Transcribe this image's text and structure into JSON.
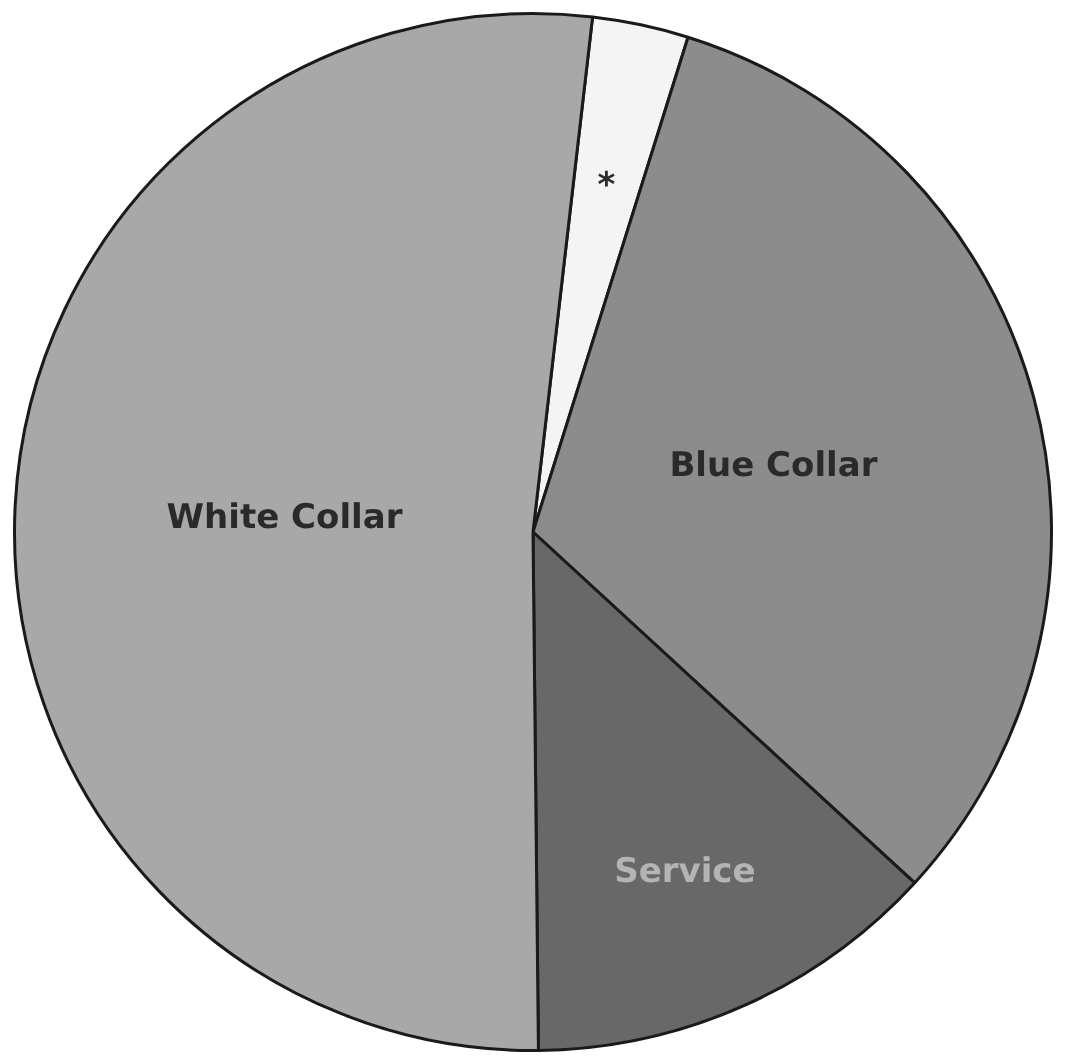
{
  "chart_data": {
    "type": "pie",
    "categories": [
      "*",
      "Blue Collar",
      "Service",
      "White Collar"
    ],
    "values": [
      3,
      32,
      13,
      52
    ],
    "colors": [
      "#f4f4f4",
      "#8c8c8c",
      "#686868",
      "#a8a8a8"
    ],
    "legend": false
  }
}
